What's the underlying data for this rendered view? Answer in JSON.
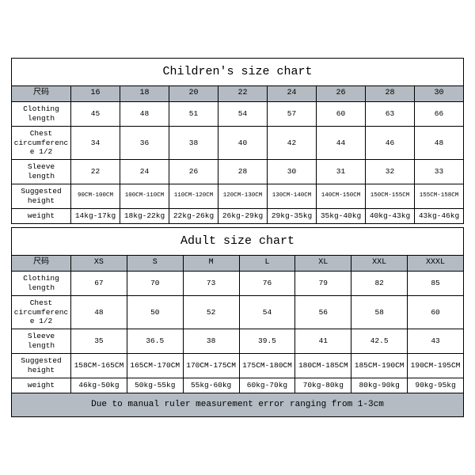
{
  "children": {
    "title": "Children's size chart",
    "size_label": "尺码",
    "columns": [
      "16",
      "18",
      "20",
      "22",
      "24",
      "26",
      "28",
      "30"
    ],
    "rows": [
      {
        "label": "Clothing length",
        "cells": [
          "45",
          "48",
          "51",
          "54",
          "57",
          "60",
          "63",
          "66"
        ]
      },
      {
        "label": "Chest circumference 1/2",
        "cells": [
          "34",
          "36",
          "38",
          "40",
          "42",
          "44",
          "46",
          "48"
        ]
      },
      {
        "label": "Sleeve length",
        "cells": [
          "22",
          "24",
          "26",
          "28",
          "30",
          "31",
          "32",
          "33"
        ]
      },
      {
        "label": "Suggested height",
        "cells": [
          "90CM-100CM",
          "100CM-110CM",
          "110CM-120CM",
          "120CM-130CM",
          "130CM-140CM",
          "140CM-150CM",
          "150CM-155CM",
          "155CM-158CM"
        ],
        "small": true
      },
      {
        "label": "weight",
        "cells": [
          "14kg-17kg",
          "18kg-22kg",
          "22kg-26kg",
          "26kg-29kg",
          "29kg-35kg",
          "35kg-40kg",
          "40kg-43kg",
          "43kg-46kg"
        ]
      }
    ]
  },
  "adult": {
    "title": "Adult size chart",
    "size_label": "尺码",
    "columns": [
      "XS",
      "S",
      "M",
      "L",
      "XL",
      "XXL",
      "XXXL"
    ],
    "rows": [
      {
        "label": "Clothing length",
        "cells": [
          "67",
          "70",
          "73",
          "76",
          "79",
          "82",
          "85"
        ]
      },
      {
        "label": "Chest circumference 1/2",
        "cells": [
          "48",
          "50",
          "52",
          "54",
          "56",
          "58",
          "60"
        ]
      },
      {
        "label": "Sleeve length",
        "cells": [
          "35",
          "36.5",
          "38",
          "39.5",
          "41",
          "42.5",
          "43"
        ]
      },
      {
        "label": "Suggested height",
        "cells": [
          "158CM-165CM",
          "165CM-170CM",
          "170CM-175CM",
          "175CM-180CM",
          "180CM-185CM",
          "185CM-190CM",
          "190CM-195CM"
        ]
      },
      {
        "label": "weight",
        "cells": [
          "46kg-50kg",
          "50kg-55kg",
          "55kg-60kg",
          "60kg-70kg",
          "70kg-80kg",
          "80kg-90kg",
          "90kg-95kg"
        ]
      }
    ],
    "footer": "Due to manual ruler measurement error ranging from 1-3cm"
  },
  "style": {
    "header_bg": "#b4bbc2",
    "border_color": "#000000",
    "background": "#ffffff",
    "font": "Courier New, monospace"
  }
}
